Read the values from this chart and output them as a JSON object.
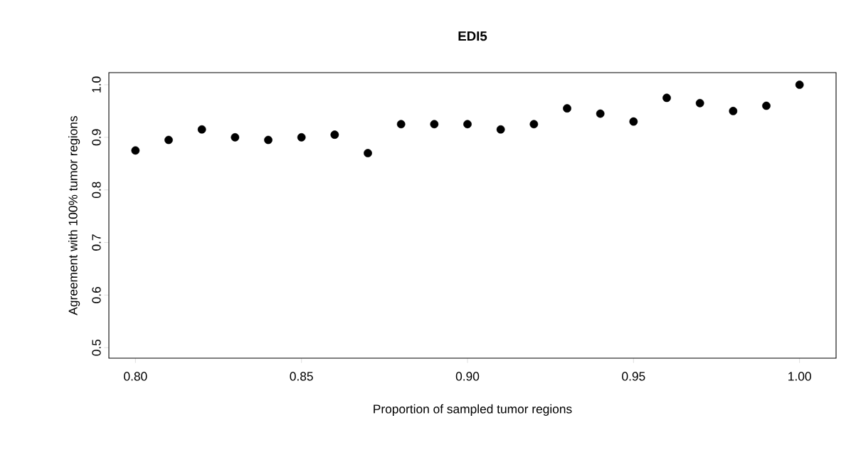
{
  "chart_data": {
    "type": "scatter",
    "title": "EDI5",
    "xlabel": "Proportion of sampled tumor regions",
    "ylabel": "Agreement with 100% tumor regions",
    "x": [
      0.8,
      0.81,
      0.82,
      0.83,
      0.84,
      0.85,
      0.86,
      0.87,
      0.88,
      0.89,
      0.9,
      0.91,
      0.92,
      0.93,
      0.94,
      0.95,
      0.96,
      0.97,
      0.98,
      0.99,
      1.0
    ],
    "values": [
      0.875,
      0.895,
      0.915,
      0.9,
      0.895,
      0.9,
      0.905,
      0.87,
      0.925,
      0.925,
      0.925,
      0.915,
      0.925,
      0.955,
      0.945,
      0.93,
      0.975,
      0.965,
      0.95,
      0.96,
      1.0
    ],
    "color": "#000000",
    "marker": "circle",
    "xlim": [
      0.792,
      1.011
    ],
    "ylim": [
      0.48,
      1.023
    ],
    "xticks": [
      {
        "value": 0.8,
        "label": "0.80"
      },
      {
        "value": 0.85,
        "label": "0.85"
      },
      {
        "value": 0.9,
        "label": "0.90"
      },
      {
        "value": 0.95,
        "label": "0.95"
      },
      {
        "value": 1.0,
        "label": "1.00"
      }
    ],
    "yticks": [
      {
        "value": 0.5,
        "label": "0.5"
      },
      {
        "value": 0.6,
        "label": "0.6"
      },
      {
        "value": 0.7,
        "label": "0.7"
      },
      {
        "value": 0.8,
        "label": "0.8"
      },
      {
        "value": 0.9,
        "label": "0.9"
      },
      {
        "value": 1.0,
        "label": "1.0"
      }
    ],
    "grid": false
  }
}
